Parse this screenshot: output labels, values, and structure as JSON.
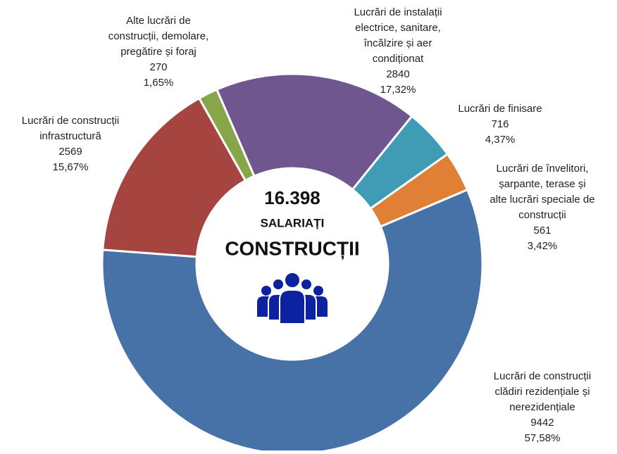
{
  "chart_data": {
    "type": "donut",
    "center_total": "16.398",
    "center_line1": "SALARIAȚI",
    "center_line2": "CONSTRUCȚII",
    "categories": [
      [
        "Lucrări de construcții",
        "clădiri rezidențiale și",
        "nerezidențiale"
      ],
      [
        "Lucrări de construcții",
        "infrastructură"
      ],
      [
        "Alte lucrări de",
        "construcții, demolare,",
        "pregătire și foraj"
      ],
      [
        "Lucrări de instalații",
        "electrice, sanitare,",
        "încălzire și aer",
        "condiționat"
      ],
      [
        "Lucrări de finisare"
      ],
      [
        "Lucrări de învelitori,",
        "șarpante, terase și",
        "alte lucrări speciale de",
        "construcții"
      ]
    ],
    "values": [
      9442,
      2569,
      270,
      2840,
      716,
      561
    ],
    "percentages": [
      57.58,
      15.67,
      1.65,
      17.32,
      4.37,
      3.42
    ],
    "percentage_labels": [
      "57,58%",
      "15,67%",
      "1,65%",
      "17,32%",
      "4,37%",
      "3,42%"
    ],
    "colors": [
      "#4672a8",
      "#a64440",
      "#87a64a",
      "#6f568f",
      "#3f9cb4",
      "#e07f36"
    ]
  }
}
